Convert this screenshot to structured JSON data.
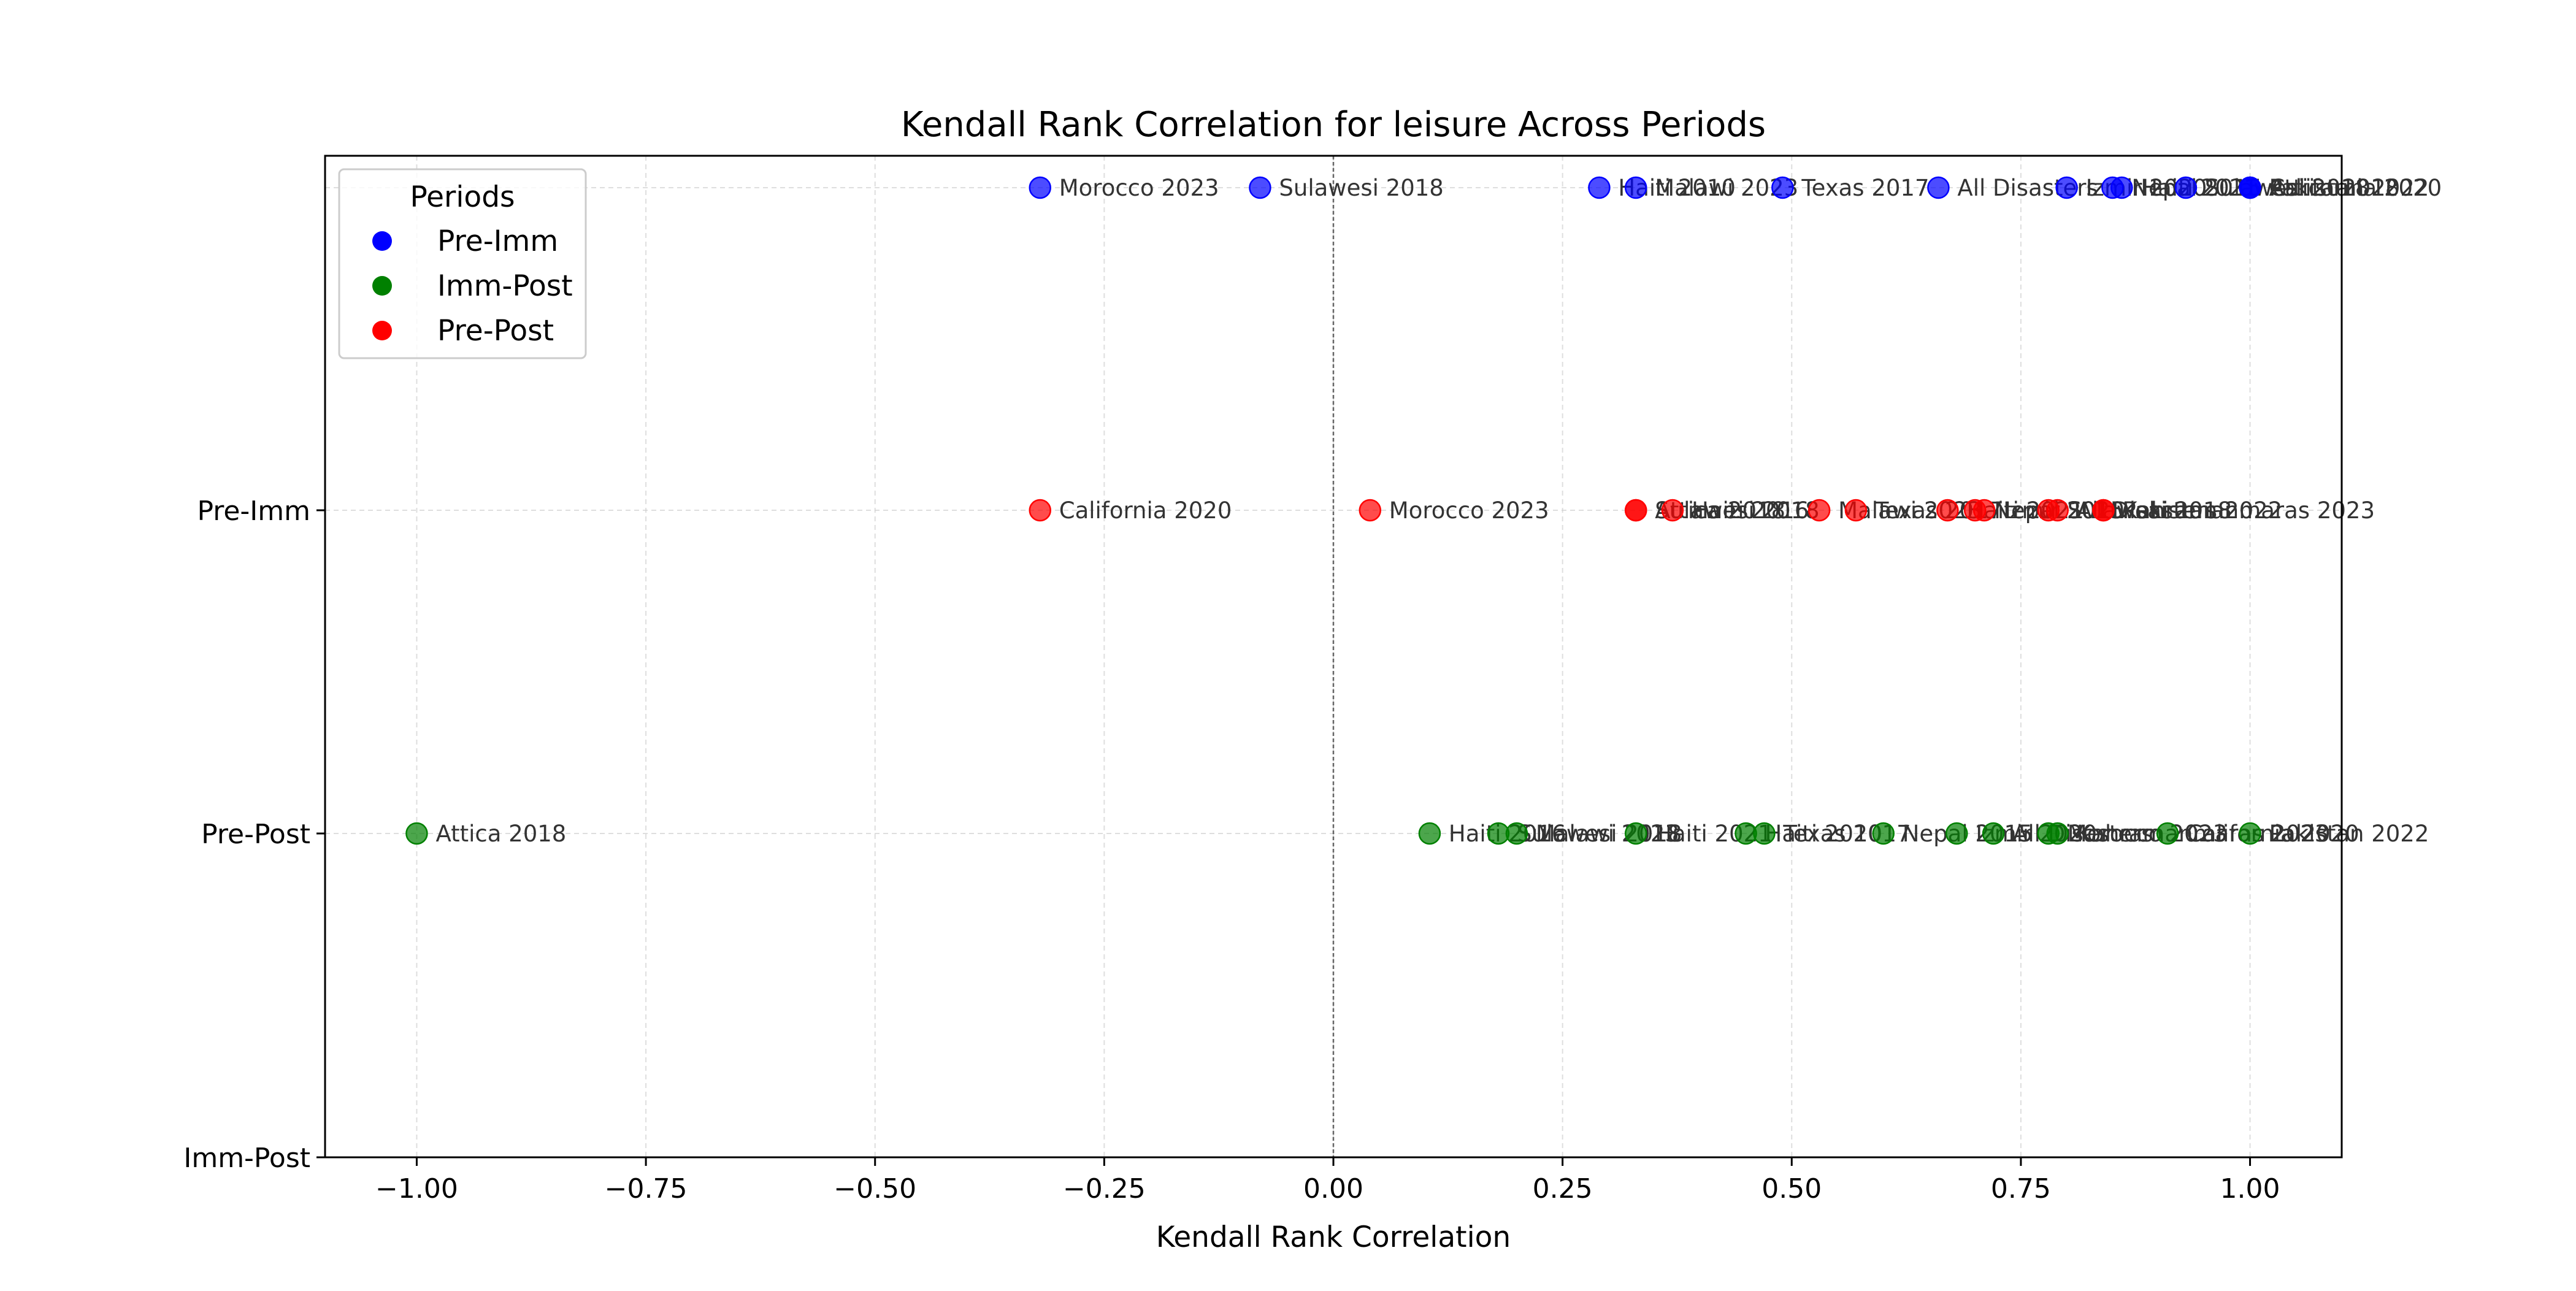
{
  "chart_data": {
    "type": "scatter",
    "title": "Kendall Rank Correlation for leisure Across Periods",
    "xlabel": "Kendall Rank Correlation",
    "ylabel": "",
    "xlim": [
      -1.1,
      1.1
    ],
    "x_ticks": [
      "−1.00",
      "−0.75",
      "−0.50",
      "−0.25",
      "0.00",
      "0.25",
      "0.50",
      "0.75",
      "1.00"
    ],
    "x_tick_values": [
      -1.0,
      -0.75,
      -0.5,
      -0.25,
      0.0,
      0.25,
      0.5,
      0.75,
      1.0
    ],
    "y_ticks": [
      "Pre-Imm",
      "Pre-Post",
      "Imm-Post"
    ],
    "grid": true,
    "reference_line_x": 0,
    "legend": {
      "title": "Periods",
      "placement": "upper-left",
      "entries": [
        {
          "name": "Pre-Imm",
          "color": "#0000ff"
        },
        {
          "name": "Imm-Post",
          "color": "#008000"
        },
        {
          "name": "Pre-Post",
          "color": "#ff0000"
        }
      ]
    },
    "series": [
      {
        "name": "Pre-Imm",
        "color": "#0000ff",
        "row": 0,
        "points": [
          {
            "x": -0.32,
            "label": "Morocco 2023"
          },
          {
            "x": -0.08,
            "label": "Sulawesi 2018"
          },
          {
            "x": 0.29,
            "label": "Haiti 2010"
          },
          {
            "x": 0.33,
            "label": "Malawi 2023"
          },
          {
            "x": 0.49,
            "label": "Texas 2017"
          },
          {
            "x": 0.66,
            "label": "All Disasters"
          },
          {
            "x": 0.8,
            "label": "Izmir 2020"
          },
          {
            "x": 0.85,
            "label": "Nepal 2015"
          },
          {
            "x": 0.86,
            "label": "Haiti 2021"
          },
          {
            "x": 0.93,
            "label": "Sulawesi 2018"
          },
          {
            "x": 1.0,
            "label": "Attica 2018"
          },
          {
            "x": 1.0,
            "label": "California 2020"
          },
          {
            "x": 1.0,
            "label": "Pakistan 2022"
          }
        ]
      },
      {
        "name": "Pre-Post",
        "color": "#ff0000",
        "row": 1,
        "points": [
          {
            "x": -0.32,
            "label": "California 2020"
          },
          {
            "x": 0.04,
            "label": "Morocco 2023"
          },
          {
            "x": 0.33,
            "label": "Sulawesi 2018"
          },
          {
            "x": 0.33,
            "label": "Attica 2018"
          },
          {
            "x": 0.37,
            "label": "Haiti 2016"
          },
          {
            "x": 0.53,
            "label": "Malawi 2023"
          },
          {
            "x": 0.57,
            "label": "Texas 2017"
          },
          {
            "x": 0.67,
            "label": "Haiti 2021"
          },
          {
            "x": 0.7,
            "label": "Nepal 2015"
          },
          {
            "x": 0.71,
            "label": "Izmir 2020"
          },
          {
            "x": 0.78,
            "label": "Sulawesi 2018"
          },
          {
            "x": 0.79,
            "label": "All Disasters"
          },
          {
            "x": 0.84,
            "label": "Pakistan 2022"
          },
          {
            "x": 0.84,
            "label": "Kahramanmaras 2023"
          }
        ]
      },
      {
        "name": "Imm-Post",
        "color": "#008000",
        "row": 2,
        "points": [
          {
            "x": -1.0,
            "label": "Attica 2018"
          },
          {
            "x": 0.105,
            "label": "Haiti 2016"
          },
          {
            "x": 0.18,
            "label": "Sulawesi 2018"
          },
          {
            "x": 0.2,
            "label": "Malawi 2023"
          },
          {
            "x": 0.33,
            "label": "Haiti 2021"
          },
          {
            "x": 0.45,
            "label": "Haiti 2010"
          },
          {
            "x": 0.47,
            "label": "Texas 2017"
          },
          {
            "x": 0.6,
            "label": "Nepal 2015"
          },
          {
            "x": 0.68,
            "label": "Izmir 2020"
          },
          {
            "x": 0.72,
            "label": "All Disasters"
          },
          {
            "x": 0.78,
            "label": "Morocco 2023"
          },
          {
            "x": 0.79,
            "label": "Kahramanmaras 2023"
          },
          {
            "x": 0.91,
            "label": "California 2020"
          },
          {
            "x": 1.0,
            "label": "Pakistan 2022"
          }
        ]
      }
    ]
  }
}
